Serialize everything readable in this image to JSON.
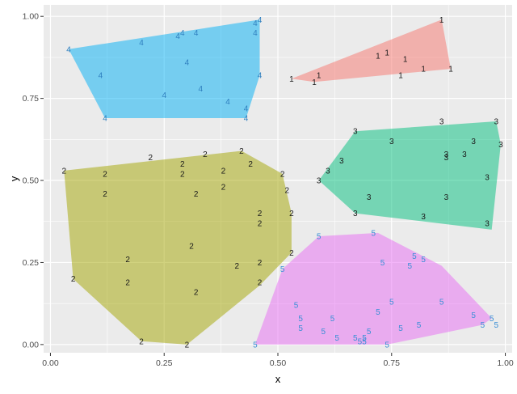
{
  "chart_data": {
    "type": "scatter",
    "title": "",
    "xlabel": "x",
    "ylabel": "y",
    "xlim": [
      -0.015,
      1.015
    ],
    "ylim": [
      -0.025,
      1.035
    ],
    "x_ticks": [
      0.0,
      0.25,
      0.5,
      0.75,
      1.0
    ],
    "x_tick_labels": [
      "0.00",
      "0.25",
      "0.50",
      "0.75",
      "1.00"
    ],
    "y_ticks": [
      0.0,
      0.25,
      0.5,
      0.75,
      1.0
    ],
    "y_tick_labels": [
      "0.00",
      "0.25",
      "0.50",
      "0.75",
      "1.00"
    ],
    "grid": true,
    "legend": "none",
    "background": "#EBEBEB",
    "series": [
      {
        "label": "1",
        "hull_color": "#F8766D",
        "text_color": "#1a1a1a",
        "hull": [
          [
            0.53,
            0.81
          ],
          [
            0.86,
            0.99
          ],
          [
            0.88,
            0.84
          ],
          [
            0.58,
            0.8
          ]
        ],
        "points": [
          [
            0.53,
            0.81
          ],
          [
            0.58,
            0.8
          ],
          [
            0.59,
            0.82
          ],
          [
            0.72,
            0.88
          ],
          [
            0.74,
            0.89
          ],
          [
            0.78,
            0.87
          ],
          [
            0.77,
            0.82
          ],
          [
            0.82,
            0.84
          ],
          [
            0.86,
            0.99
          ],
          [
            0.88,
            0.84
          ]
        ]
      },
      {
        "label": "2",
        "hull_color": "#A3A500",
        "text_color": "#1a1a1a",
        "hull": [
          [
            0.03,
            0.53
          ],
          [
            0.42,
            0.59
          ],
          [
            0.51,
            0.52
          ],
          [
            0.53,
            0.4
          ],
          [
            0.53,
            0.28
          ],
          [
            0.46,
            0.18
          ],
          [
            0.3,
            0.0
          ],
          [
            0.2,
            0.01
          ],
          [
            0.05,
            0.2
          ]
        ],
        "points": [
          [
            0.03,
            0.53
          ],
          [
            0.05,
            0.2
          ],
          [
            0.12,
            0.52
          ],
          [
            0.12,
            0.46
          ],
          [
            0.17,
            0.26
          ],
          [
            0.17,
            0.19
          ],
          [
            0.2,
            0.01
          ],
          [
            0.22,
            0.57
          ],
          [
            0.29,
            0.52
          ],
          [
            0.29,
            0.55
          ],
          [
            0.3,
            0.0
          ],
          [
            0.31,
            0.3
          ],
          [
            0.32,
            0.16
          ],
          [
            0.32,
            0.46
          ],
          [
            0.34,
            0.58
          ],
          [
            0.38,
            0.48
          ],
          [
            0.38,
            0.53
          ],
          [
            0.41,
            0.24
          ],
          [
            0.42,
            0.59
          ],
          [
            0.44,
            0.55
          ],
          [
            0.46,
            0.25
          ],
          [
            0.46,
            0.19
          ],
          [
            0.46,
            0.4
          ],
          [
            0.46,
            0.37
          ],
          [
            0.51,
            0.52
          ],
          [
            0.52,
            0.47
          ],
          [
            0.53,
            0.4
          ],
          [
            0.53,
            0.28
          ]
        ]
      },
      {
        "label": "3",
        "hull_color": "#00BF7D",
        "text_color": "#1a1a1a",
        "hull": [
          [
            0.59,
            0.5
          ],
          [
            0.67,
            0.65
          ],
          [
            0.98,
            0.68
          ],
          [
            0.99,
            0.61
          ],
          [
            0.97,
            0.35
          ],
          [
            0.67,
            0.4
          ]
        ],
        "points": [
          [
            0.59,
            0.5
          ],
          [
            0.61,
            0.53
          ],
          [
            0.64,
            0.56
          ],
          [
            0.67,
            0.4
          ],
          [
            0.67,
            0.65
          ],
          [
            0.7,
            0.45
          ],
          [
            0.75,
            0.62
          ],
          [
            0.82,
            0.39
          ],
          [
            0.86,
            0.68
          ],
          [
            0.87,
            0.58
          ],
          [
            0.87,
            0.57
          ],
          [
            0.87,
            0.45
          ],
          [
            0.91,
            0.58
          ],
          [
            0.93,
            0.62
          ],
          [
            0.96,
            0.37
          ],
          [
            0.96,
            0.51
          ],
          [
            0.98,
            0.68
          ],
          [
            0.99,
            0.61
          ]
        ]
      },
      {
        "label": "4",
        "hull_color": "#00B0F6",
        "text_color": "#2f7fbf",
        "hull": [
          [
            0.04,
            0.9
          ],
          [
            0.46,
            0.99
          ],
          [
            0.46,
            0.82
          ],
          [
            0.43,
            0.69
          ],
          [
            0.12,
            0.69
          ]
        ],
        "points": [
          [
            0.04,
            0.9
          ],
          [
            0.11,
            0.82
          ],
          [
            0.12,
            0.69
          ],
          [
            0.2,
            0.92
          ],
          [
            0.25,
            0.76
          ],
          [
            0.28,
            0.94
          ],
          [
            0.29,
            0.95
          ],
          [
            0.3,
            0.86
          ],
          [
            0.32,
            0.95
          ],
          [
            0.33,
            0.78
          ],
          [
            0.39,
            0.74
          ],
          [
            0.43,
            0.69
          ],
          [
            0.43,
            0.72
          ],
          [
            0.45,
            0.95
          ],
          [
            0.45,
            0.98
          ],
          [
            0.46,
            0.99
          ],
          [
            0.46,
            0.82
          ]
        ]
      },
      {
        "label": "5",
        "hull_color": "#E76BF3",
        "text_color": "#3a8fd6",
        "hull": [
          [
            0.51,
            0.23
          ],
          [
            0.59,
            0.33
          ],
          [
            0.72,
            0.34
          ],
          [
            0.86,
            0.24
          ],
          [
            0.97,
            0.08
          ],
          [
            0.95,
            0.06
          ],
          [
            0.74,
            0.0
          ],
          [
            0.45,
            0.0
          ]
        ],
        "points": [
          [
            0.45,
            0.0
          ],
          [
            0.51,
            0.23
          ],
          [
            0.54,
            0.12
          ],
          [
            0.55,
            0.05
          ],
          [
            0.55,
            0.08
          ],
          [
            0.59,
            0.33
          ],
          [
            0.6,
            0.04
          ],
          [
            0.62,
            0.08
          ],
          [
            0.63,
            0.02
          ],
          [
            0.67,
            0.02
          ],
          [
            0.68,
            0.01
          ],
          [
            0.69,
            0.01
          ],
          [
            0.69,
            0.02
          ],
          [
            0.7,
            0.04
          ],
          [
            0.71,
            0.34
          ],
          [
            0.72,
            0.1
          ],
          [
            0.73,
            0.25
          ],
          [
            0.74,
            0.0
          ],
          [
            0.75,
            0.13
          ],
          [
            0.77,
            0.05
          ],
          [
            0.79,
            0.24
          ],
          [
            0.8,
            0.27
          ],
          [
            0.81,
            0.06
          ],
          [
            0.82,
            0.26
          ],
          [
            0.86,
            0.13
          ],
          [
            0.93,
            0.09
          ],
          [
            0.95,
            0.06
          ],
          [
            0.97,
            0.08
          ],
          [
            0.98,
            0.06
          ]
        ]
      }
    ]
  }
}
